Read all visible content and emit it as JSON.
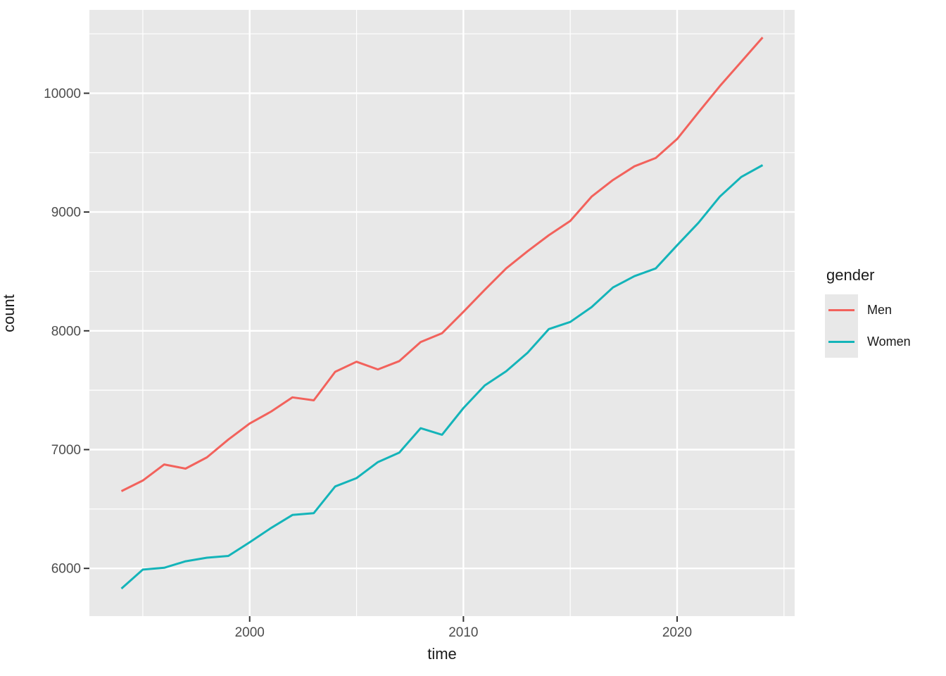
{
  "chart_data": {
    "type": "line",
    "title": "",
    "xlabel": "time",
    "ylabel": "count",
    "x": [
      1994,
      1995,
      1996,
      1997,
      1998,
      1999,
      2000,
      2001,
      2002,
      2003,
      2004,
      2005,
      2006,
      2007,
      2008,
      2009,
      2010,
      2011,
      2012,
      2013,
      2014,
      2015,
      2016,
      2017,
      2018,
      2019,
      2020,
      2021,
      2022,
      2023,
      2024
    ],
    "series": [
      {
        "name": "Men",
        "color": "#f2625c",
        "values": [
          6650,
          6740,
          6875,
          6840,
          6935,
          7085,
          7220,
          7320,
          7440,
          7415,
          7655,
          7740,
          7675,
          7745,
          7905,
          7980,
          8160,
          8345,
          8525,
          8670,
          8805,
          8925,
          9130,
          9270,
          9385,
          9455,
          9615,
          9840,
          10060,
          10265,
          10470
        ]
      },
      {
        "name": "Women",
        "color": "#14b4b9",
        "values": [
          5830,
          5990,
          6005,
          6060,
          6090,
          6105,
          6220,
          6340,
          6450,
          6465,
          6690,
          6760,
          6895,
          6975,
          7180,
          7125,
          7350,
          7540,
          7660,
          7815,
          8015,
          8075,
          8200,
          8365,
          8460,
          8525,
          8720,
          8910,
          9130,
          9295,
          9395
        ]
      }
    ],
    "x_ticks": [
      2000,
      2010,
      2020
    ],
    "y_ticks": [
      6000,
      7000,
      8000,
      9000,
      10000
    ],
    "xlim": [
      1992.5,
      2025.5
    ],
    "ylim": [
      5598,
      10702
    ],
    "grid": "major-and-minor",
    "legend_position": "right",
    "legend": {
      "title": "gender",
      "entries": [
        "Men",
        "Women"
      ]
    },
    "theme": {
      "panel_background": "#e8e8e8",
      "grid_color": "#ffffff",
      "tick_label_color": "#4d4d4d",
      "axis_title_color": "#1a1a1a",
      "tick_mark_color": "#333333",
      "outer_background": "#ffffff"
    }
  }
}
